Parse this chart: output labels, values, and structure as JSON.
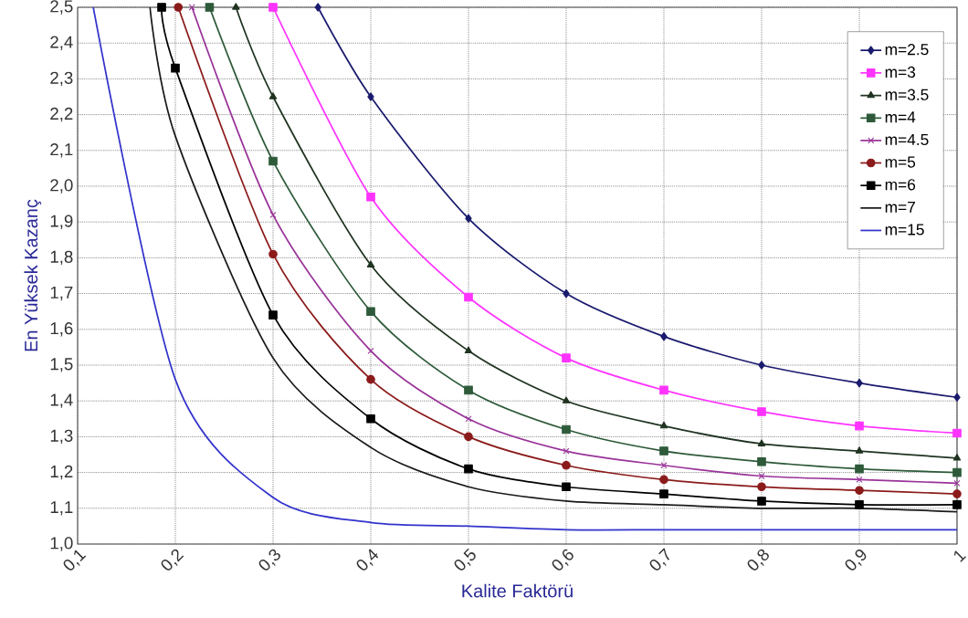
{
  "chart_data": {
    "type": "line",
    "xlabel": "Kalite Faktörü",
    "ylabel": "En Yüksek Kazanç",
    "xlim": [
      0.1,
      1
    ],
    "ylim": [
      1.0,
      2.5
    ],
    "xticks": [
      {
        "value": 0.1,
        "label": "0,1"
      },
      {
        "value": 0.2,
        "label": "0,2"
      },
      {
        "value": 0.3,
        "label": "0,3"
      },
      {
        "value": 0.4,
        "label": "0,4"
      },
      {
        "value": 0.5,
        "label": "0,5"
      },
      {
        "value": 0.6,
        "label": "0,6"
      },
      {
        "value": 0.7,
        "label": "0,7"
      },
      {
        "value": 0.8,
        "label": "0,8"
      },
      {
        "value": 0.9,
        "label": "0,9"
      },
      {
        "value": 1,
        "label": "1"
      }
    ],
    "yticks": [
      {
        "value": 1.0,
        "label": "1,0"
      },
      {
        "value": 1.1,
        "label": "1,1"
      },
      {
        "value": 1.2,
        "label": "1,2"
      },
      {
        "value": 1.3,
        "label": "1,3"
      },
      {
        "value": 1.4,
        "label": "1,4"
      },
      {
        "value": 1.5,
        "label": "1,5"
      },
      {
        "value": 1.6,
        "label": "1,6"
      },
      {
        "value": 1.7,
        "label": "1,7"
      },
      {
        "value": 1.8,
        "label": "1,8"
      },
      {
        "value": 1.9,
        "label": "1,9"
      },
      {
        "value": 2.0,
        "label": "2,0"
      },
      {
        "value": 2.1,
        "label": "2,1"
      },
      {
        "value": 2.2,
        "label": "2,2"
      },
      {
        "value": 2.3,
        "label": "2,3"
      },
      {
        "value": 2.4,
        "label": "2,4"
      },
      {
        "value": 2.5,
        "label": "2,5"
      }
    ],
    "grid": true,
    "legend": "top right",
    "line_style": "solid",
    "series": [
      {
        "name": "m=2.5",
        "color": "#1a1a6e",
        "marker": "diamond",
        "x": [
          0.346,
          0.4,
          0.5,
          0.6,
          0.7,
          0.8,
          0.9,
          1
        ],
        "values": [
          2.5,
          2.25,
          1.91,
          1.7,
          1.58,
          1.5,
          1.45,
          1.41
        ]
      },
      {
        "name": "m=3",
        "color": "#ff33ff",
        "marker": "square",
        "x": [
          0.3,
          0.4,
          0.5,
          0.6,
          0.7,
          0.8,
          0.9,
          1
        ],
        "values": [
          2.5,
          1.97,
          1.69,
          1.52,
          1.43,
          1.37,
          1.33,
          1.31
        ]
      },
      {
        "name": "m=3.5",
        "color": "#1f3320",
        "marker": "triangle",
        "x": [
          0.262,
          0.3,
          0.4,
          0.5,
          0.6,
          0.7,
          0.8,
          0.9,
          1
        ],
        "values": [
          2.5,
          2.25,
          1.78,
          1.54,
          1.4,
          1.33,
          1.28,
          1.26,
          1.24
        ]
      },
      {
        "name": "m=4",
        "color": "#2e5a3a",
        "marker": "square",
        "x": [
          0.235,
          0.3,
          0.4,
          0.5,
          0.6,
          0.7,
          0.8,
          0.9,
          1
        ],
        "values": [
          2.5,
          2.07,
          1.65,
          1.43,
          1.32,
          1.26,
          1.23,
          1.21,
          1.2
        ]
      },
      {
        "name": "m=4.5",
        "color": "#993399",
        "marker": "cross",
        "x": [
          0.217,
          0.3,
          0.4,
          0.5,
          0.6,
          0.7,
          0.8,
          0.9,
          1
        ],
        "values": [
          2.5,
          1.92,
          1.54,
          1.35,
          1.26,
          1.22,
          1.19,
          1.18,
          1.17
        ]
      },
      {
        "name": "m=5",
        "color": "#8b1a1a",
        "marker": "circle",
        "x": [
          0.203,
          0.3,
          0.4,
          0.5,
          0.6,
          0.7,
          0.8,
          0.9,
          1
        ],
        "values": [
          2.5,
          1.81,
          1.46,
          1.3,
          1.22,
          1.18,
          1.16,
          1.15,
          1.14
        ]
      },
      {
        "name": "m=6",
        "color": "#000000",
        "marker": "square",
        "x": [
          0.186,
          0.2,
          0.3,
          0.4,
          0.5,
          0.6,
          0.7,
          0.8,
          0.9,
          1
        ],
        "values": [
          2.5,
          2.33,
          1.64,
          1.35,
          1.21,
          1.16,
          1.14,
          1.12,
          1.11,
          1.11
        ]
      },
      {
        "name": "m=7",
        "color": "#1a1a1a",
        "marker": "none",
        "x": [
          0.174,
          0.2,
          0.3,
          0.4,
          0.5,
          0.6,
          0.7,
          0.8,
          0.9,
          1
        ],
        "values": [
          2.5,
          2.14,
          1.52,
          1.27,
          1.16,
          1.12,
          1.11,
          1.1,
          1.1,
          1.09
        ]
      },
      {
        "name": "m=15",
        "color": "#3333cc",
        "marker": "none",
        "x": [
          0.116,
          0.2,
          0.3,
          0.4,
          0.5,
          0.6,
          0.7,
          0.8,
          0.9,
          1
        ],
        "values": [
          2.5,
          1.46,
          1.13,
          1.06,
          1.05,
          1.04,
          1.04,
          1.04,
          1.04,
          1.04
        ]
      }
    ]
  }
}
